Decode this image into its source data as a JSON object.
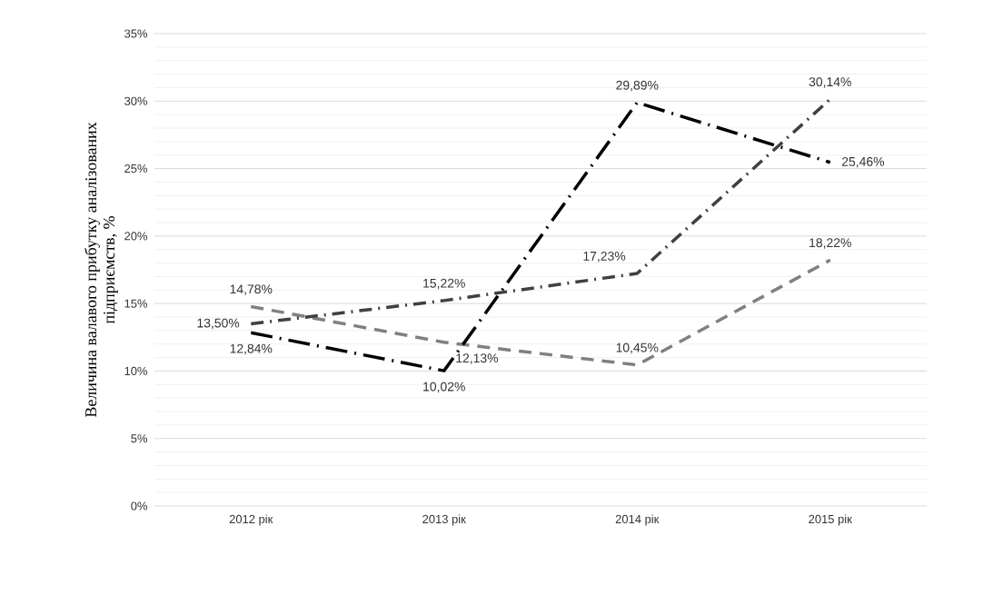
{
  "chart_data": {
    "type": "line",
    "ylabel": "Величина валавого прибутку аналізованих підприємств, %",
    "categories": [
      "2012 рік",
      "2013 рік",
      "2014 рік",
      "2015 рік"
    ],
    "ylim": [
      0,
      35
    ],
    "yticks": [
      {
        "value": 0,
        "label": "0%"
      },
      {
        "value": 5,
        "label": "5%"
      },
      {
        "value": 10,
        "label": "10%"
      },
      {
        "value": 15,
        "label": "15%"
      },
      {
        "value": 20,
        "label": "20%"
      },
      {
        "value": 25,
        "label": "25%"
      },
      {
        "value": 30,
        "label": "30%"
      },
      {
        "value": 35,
        "label": "35%"
      }
    ],
    "grid": "y",
    "line_style": "dashed",
    "marker": "none",
    "series": [
      {
        "color": "#808080",
        "values": [
          14.78,
          12.13,
          10.45,
          18.22
        ],
        "value_labels": [
          "14,78%",
          "12,13%",
          "10,45%",
          "18,22%"
        ]
      },
      {
        "color": "#404040",
        "values": [
          13.5,
          15.22,
          17.23,
          30.14
        ],
        "value_labels": [
          "13,50%",
          "15,22%",
          "17,23%",
          "30,14%"
        ]
      },
      {
        "color": "#000000",
        "values": [
          12.84,
          10.02,
          29.89,
          25.46
        ],
        "value_labels": [
          "12,84%",
          "10,02%",
          "29,89%",
          "25,46%"
        ]
      }
    ]
  }
}
